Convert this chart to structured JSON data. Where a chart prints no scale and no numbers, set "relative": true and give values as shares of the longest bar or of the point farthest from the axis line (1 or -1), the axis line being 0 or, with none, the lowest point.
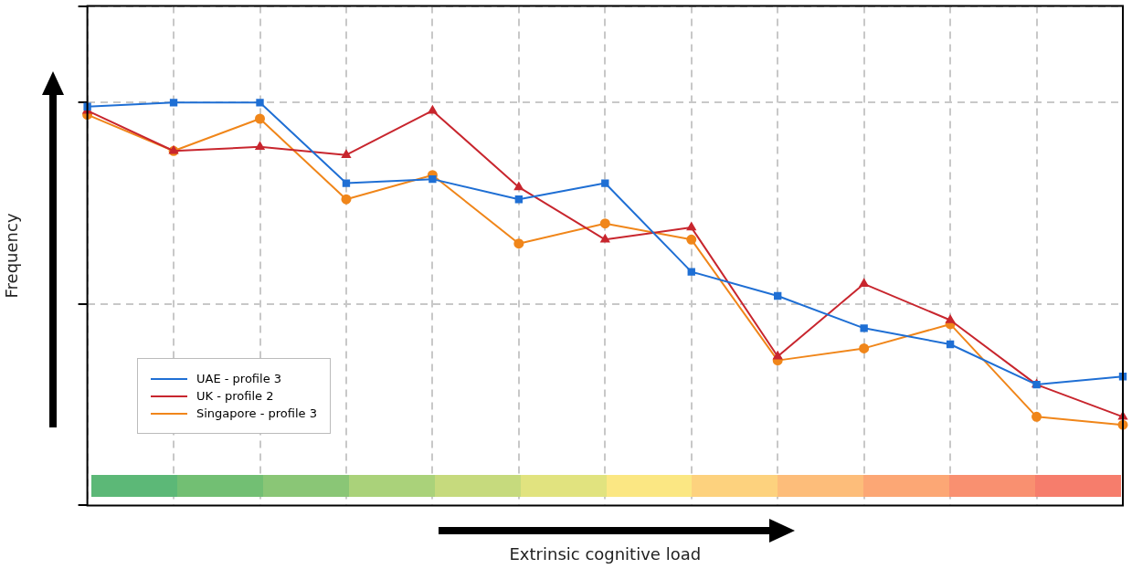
{
  "chart_data": {
    "type": "line",
    "xlabel": "Extrinsic cognitive load",
    "ylabel": "Frequency",
    "relative": true,
    "grid": true,
    "line_style": "solid",
    "legend": "bottom left",
    "categories": [
      null,
      null,
      null,
      null,
      null,
      null,
      null,
      null,
      null,
      null,
      null,
      null,
      null
    ],
    "series": [
      {
        "name": "UAE - profile 3",
        "color": "#1f6fd4",
        "marker": "square",
        "values": [
          0.99,
          1.0,
          1.0,
          0.8,
          0.81,
          0.76,
          0.8,
          0.58,
          0.52,
          0.44,
          0.4,
          0.3,
          0.32
        ]
      },
      {
        "name": "UK - profile 2",
        "color": "#c8262e",
        "marker": "triangle",
        "values": [
          0.98,
          0.88,
          0.89,
          0.87,
          0.98,
          0.79,
          0.66,
          0.69,
          0.37,
          0.55,
          0.46,
          0.3,
          0.22
        ]
      },
      {
        "name": "Singapore - profile 3",
        "color": "#f0861a",
        "marker": "circle",
        "values": [
          0.97,
          0.88,
          0.96,
          0.76,
          0.82,
          0.65,
          0.7,
          0.66,
          0.36,
          0.39,
          0.45,
          0.22,
          0.2
        ]
      }
    ]
  }
}
